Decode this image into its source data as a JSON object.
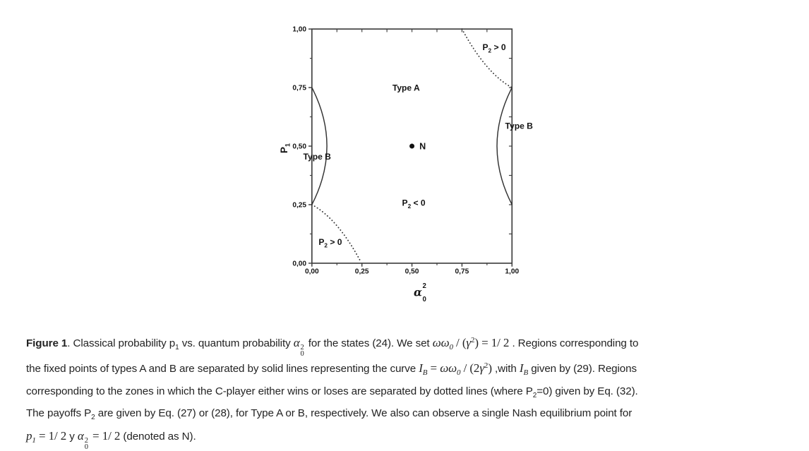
{
  "chart_data": {
    "type": "line",
    "title": "",
    "xlabel": {
      "base": "α",
      "sub": "0",
      "sup": "2"
    },
    "ylabel": {
      "base": "P",
      "sub": "1"
    },
    "xlim": [
      0,
      1
    ],
    "ylim": [
      0,
      1
    ],
    "grid": false,
    "x_ticks": {
      "values": [
        0,
        0.25,
        0.5,
        0.75,
        1
      ],
      "labels": [
        "0,00",
        "0,25",
        "0,50",
        "0,75",
        "1,00"
      ],
      "minor_step": 0.125
    },
    "y_ticks": {
      "values": [
        0,
        0.25,
        0.5,
        0.75,
        1
      ],
      "labels": [
        "1,00",
        "0,75",
        "0,50",
        "0,25",
        "0,00"
      ],
      "values_top_down": [
        1,
        0.75,
        0.5,
        0.25,
        0
      ],
      "minor_step": 0.125
    },
    "series": [
      {
        "name": "type-boundary-left",
        "style": "solid",
        "bezier": {
          "p0": [
            0,
            0.75
          ],
          "c": [
            0.15,
            0.5
          ],
          "p1": [
            0,
            0.25
          ]
        }
      },
      {
        "name": "type-boundary-right",
        "style": "solid",
        "bezier": {
          "p0": [
            1,
            0.75
          ],
          "c": [
            0.85,
            0.5
          ],
          "p1": [
            1,
            0.25
          ]
        }
      },
      {
        "name": "p2-zero-top-right",
        "style": "dotted",
        "bezier": {
          "p0": [
            0.75,
            1
          ],
          "c": [
            0.87,
            0.81
          ],
          "p1": [
            1,
            0.75
          ]
        }
      },
      {
        "name": "p2-zero-bottom-left",
        "style": "dotted",
        "bezier": {
          "p0": [
            0,
            0.25
          ],
          "c": [
            0.13,
            0.19
          ],
          "p1": [
            0.245,
            0.005
          ]
        }
      }
    ],
    "points": [
      {
        "name": "nash-equilibrium-point",
        "x": 0.5,
        "y": 0.5,
        "label": "N"
      }
    ],
    "annotations": [
      {
        "name": "region-type-a",
        "base": "Type A",
        "sub": "",
        "rest": "",
        "x": 0.471,
        "y": 0.749
      },
      {
        "name": "region-type-b-right",
        "base": "Type B",
        "sub": "",
        "rest": "",
        "x": 1.035,
        "y": 0.586
      },
      {
        "name": "region-type-b-left",
        "base": "Type B",
        "sub": "",
        "rest": "",
        "x": 0.026,
        "y": 0.455
      },
      {
        "name": "region-p2-positive-top",
        "base": "P",
        "sub": "2",
        "rest": " > 0",
        "x": 0.911,
        "y": 0.921
      },
      {
        "name": "region-p2-negative-center",
        "base": "P",
        "sub": "2",
        "rest": " < 0",
        "x": 0.509,
        "y": 0.257
      },
      {
        "name": "region-p2-positive-bottom",
        "base": "P",
        "sub": "2",
        "rest": " > 0",
        "x": 0.092,
        "y": 0.09
      }
    ],
    "colors": {
      "axis": "#3d3d3d",
      "curve": "#333333",
      "text": "#141414"
    }
  },
  "figure": {
    "caption_lines": [
      [
        {
          "s": "b",
          "t": "Figure 1"
        },
        {
          "s": "n",
          "t": ". Classical probability p"
        },
        {
          "s": "sub",
          "t": "1"
        },
        {
          "s": "n",
          "t": " vs. quantum probability "
        },
        {
          "s": "ss",
          "t": "α",
          "sub": "0",
          "sup": "2"
        },
        {
          "s": "n",
          "t": " for the states (24). We set "
        },
        {
          "s": "m",
          "t": "ωω"
        },
        {
          "s": "msub",
          "t": "0"
        },
        {
          "s": "mr",
          "t": " / ("
        },
        {
          "s": "m",
          "t": "γ"
        },
        {
          "s": "msup",
          "t": "2"
        },
        {
          "s": "mr",
          "t": ") = 1/ 2"
        },
        {
          "s": "n",
          "t": " . Regions corresponding to"
        }
      ],
      [
        {
          "s": "n",
          "t": "the fixed points of types A and B are separated by solid lines representing the curve "
        },
        {
          "s": "m",
          "t": "I"
        },
        {
          "s": "msub",
          "t": "B"
        },
        {
          "s": "mr",
          "t": " = "
        },
        {
          "s": "m",
          "t": "ωω"
        },
        {
          "s": "msub",
          "t": "0"
        },
        {
          "s": "mr",
          "t": " / (2"
        },
        {
          "s": "m",
          "t": "γ"
        },
        {
          "s": "msup",
          "t": "2"
        },
        {
          "s": "mr",
          "t": ") "
        },
        {
          "s": "n",
          "t": ",with "
        },
        {
          "s": "m",
          "t": "I"
        },
        {
          "s": "msub",
          "t": "B"
        },
        {
          "s": "n",
          "t": " given by (29). Regions"
        }
      ],
      [
        {
          "s": "n",
          "t": "corresponding to the zones in which the C-player either wins or loses are separated by dotted lines (where P"
        },
        {
          "s": "sub",
          "t": "2"
        },
        {
          "s": "n",
          "t": "=0) given by Eq. (32)."
        }
      ],
      [
        {
          "s": "n",
          "t": "The payoffs P"
        },
        {
          "s": "sub",
          "t": "2"
        },
        {
          "s": "n",
          "t": " are given by Eq. (27) or (28), for Type A or B, respectively. We also can observe a single Nash equilibrium point for"
        }
      ],
      [
        {
          "s": "m",
          "t": "p"
        },
        {
          "s": "msub",
          "t": "1"
        },
        {
          "s": "mr",
          "t": " = 1/ 2"
        },
        {
          "s": "n",
          "t": " y "
        },
        {
          "s": "ss",
          "t": "α",
          "sub": "0",
          "sup": "2"
        },
        {
          "s": "mr",
          "t": " = 1/ 2"
        },
        {
          "s": "n",
          "t": " (denoted as N)."
        }
      ]
    ]
  }
}
